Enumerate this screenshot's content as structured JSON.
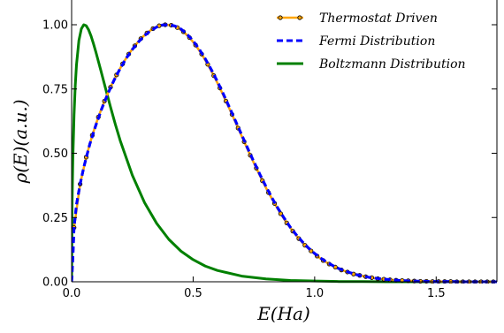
{
  "chart_data": {
    "type": "line",
    "xlabel": "E(Ha)",
    "ylabel": "ρ(E)(a.u.)",
    "xlim": [
      0,
      1.75
    ],
    "ylim": [
      0,
      1.0
    ],
    "xticks": [
      "0.0",
      "0.5",
      "1.0",
      "1.5"
    ],
    "xtick_values": [
      0,
      0.5,
      1.0,
      1.5
    ],
    "yticks": [
      "0.00",
      "0.25",
      "0.50",
      "0.75",
      "1.00"
    ],
    "ytick_values": [
      0,
      0.25,
      0.5,
      0.75,
      1.0
    ],
    "grid": false,
    "legend_position": "top-right",
    "series": [
      {
        "name": "Thermostat Driven",
        "color": "#ffa500",
        "marker": "circle",
        "marker_edge": "#000000",
        "linestyle": "solid",
        "x": [
          0.01,
          0.035,
          0.06,
          0.085,
          0.11,
          0.135,
          0.16,
          0.185,
          0.21,
          0.235,
          0.26,
          0.285,
          0.31,
          0.335,
          0.36,
          0.385,
          0.41,
          0.435,
          0.46,
          0.485,
          0.51,
          0.535,
          0.56,
          0.585,
          0.61,
          0.635,
          0.66,
          0.685,
          0.71,
          0.735,
          0.76,
          0.785,
          0.81,
          0.835,
          0.86,
          0.885,
          0.91,
          0.935,
          0.96,
          0.985,
          1.01,
          1.035,
          1.06,
          1.085,
          1.11,
          1.135,
          1.16,
          1.185,
          1.21,
          1.235,
          1.26,
          1.285,
          1.31,
          1.335,
          1.36,
          1.385,
          1.41,
          1.435,
          1.46,
          1.485,
          1.51,
          1.535,
          1.56,
          1.585,
          1.61,
          1.635,
          1.66,
          1.685,
          1.71,
          1.735
        ],
        "y": [
          0.211,
          0.38,
          0.485,
          0.57,
          0.641,
          0.703,
          0.757,
          0.805,
          0.848,
          0.886,
          0.918,
          0.946,
          0.968,
          0.985,
          0.996,
          1.0,
          0.998,
          0.989,
          0.973,
          0.95,
          0.921,
          0.886,
          0.846,
          0.802,
          0.754,
          0.703,
          0.651,
          0.598,
          0.545,
          0.492,
          0.442,
          0.393,
          0.347,
          0.305,
          0.265,
          0.229,
          0.197,
          0.168,
          0.142,
          0.12,
          0.1,
          0.083,
          0.069,
          0.057,
          0.046,
          0.038,
          0.03,
          0.025,
          0.02,
          0.016,
          0.012,
          0.01,
          0.008,
          0.006,
          0.005,
          0.004,
          0.003,
          0.002,
          0.002,
          0.001,
          0.001,
          0.001,
          0.001,
          0.0,
          0.0,
          0.0,
          0.0,
          0.0,
          0.0,
          0.0
        ]
      },
      {
        "name": "Fermi Distribution",
        "color": "#0000ff",
        "linestyle": "dashed",
        "x": [
          0.0,
          0.005,
          0.01,
          0.02,
          0.035,
          0.05,
          0.075,
          0.1,
          0.125,
          0.15,
          0.175,
          0.2,
          0.225,
          0.25,
          0.275,
          0.3,
          0.325,
          0.35,
          0.375,
          0.4,
          0.425,
          0.45,
          0.475,
          0.5,
          0.525,
          0.55,
          0.575,
          0.6,
          0.625,
          0.65,
          0.675,
          0.7,
          0.725,
          0.75,
          0.775,
          0.8,
          0.825,
          0.85,
          0.875,
          0.9,
          0.925,
          0.95,
          0.975,
          1.0,
          1.025,
          1.05,
          1.075,
          1.1,
          1.125,
          1.15,
          1.175,
          1.2,
          1.225,
          1.25,
          1.275,
          1.3,
          1.325,
          1.35,
          1.375,
          1.4,
          1.425,
          1.45,
          1.475,
          1.5,
          1.55,
          1.6,
          1.65,
          1.7,
          1.75
        ],
        "y": [
          0.0,
          0.094,
          0.211,
          0.3,
          0.38,
          0.445,
          0.536,
          0.61,
          0.676,
          0.734,
          0.785,
          0.83,
          0.87,
          0.904,
          0.933,
          0.958,
          0.977,
          0.991,
          0.999,
          1.0,
          0.995,
          0.983,
          0.963,
          0.937,
          0.905,
          0.867,
          0.825,
          0.779,
          0.729,
          0.677,
          0.624,
          0.571,
          0.518,
          0.467,
          0.417,
          0.37,
          0.325,
          0.284,
          0.247,
          0.212,
          0.182,
          0.155,
          0.131,
          0.11,
          0.092,
          0.076,
          0.063,
          0.051,
          0.042,
          0.034,
          0.027,
          0.022,
          0.017,
          0.014,
          0.011,
          0.009,
          0.007,
          0.005,
          0.004,
          0.003,
          0.002,
          0.002,
          0.001,
          0.001,
          0.001,
          0.0,
          0.0,
          0.0,
          0.0
        ]
      },
      {
        "name": "Boltzmann Distribution",
        "color": "#008000",
        "linestyle": "solid",
        "x": [
          0.0,
          0.002,
          0.005,
          0.01,
          0.015,
          0.02,
          0.03,
          0.04,
          0.05,
          0.06,
          0.07,
          0.08,
          0.09,
          0.1,
          0.12,
          0.14,
          0.16,
          0.18,
          0.2,
          0.25,
          0.3,
          0.35,
          0.4,
          0.45,
          0.5,
          0.55,
          0.6,
          0.7,
          0.8,
          0.9,
          1.0,
          1.1,
          1.2,
          1.3,
          1.4,
          1.5,
          1.6,
          1.7,
          1.75
        ],
        "y": [
          0.0,
          0.305,
          0.477,
          0.65,
          0.764,
          0.844,
          0.939,
          0.984,
          1.0,
          0.996,
          0.98,
          0.956,
          0.926,
          0.893,
          0.823,
          0.751,
          0.68,
          0.612,
          0.549,
          0.414,
          0.308,
          0.227,
          0.165,
          0.119,
          0.086,
          0.061,
          0.044,
          0.022,
          0.011,
          0.005,
          0.003,
          0.001,
          0.001,
          0.0,
          0.0,
          0.0,
          0.0,
          0.0,
          0.0
        ]
      }
    ]
  }
}
